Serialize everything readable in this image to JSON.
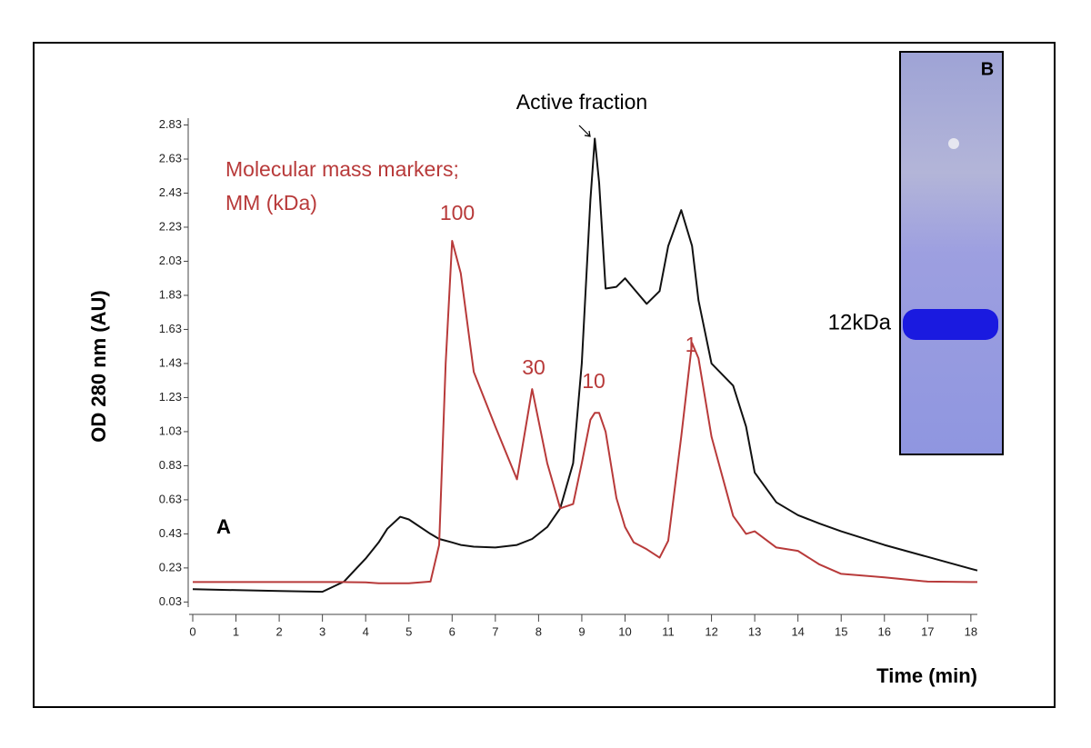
{
  "chart_data": {
    "type": "line",
    "y_label": "OD 280 nm (AU)",
    "x_label": "Time (min)",
    "annotations": [
      "Active fraction",
      "Molecular mass markers;",
      "MM (kDa)",
      "100",
      "30",
      "10",
      "1",
      "A"
    ],
    "inset": {
      "label": "B",
      "band_label": "12kDa"
    },
    "x": [
      0,
      1,
      2,
      3,
      3.5,
      4,
      4.3,
      4.5,
      4.8,
      5,
      5.5,
      5.7,
      5.85,
      6,
      6.2,
      6.5,
      7,
      7.5,
      7.85,
      8.2,
      8.5,
      8.8,
      9,
      9.2,
      9.3,
      9.4,
      9.55,
      9.8,
      10,
      10.2,
      10.5,
      10.8,
      11,
      11.3,
      11.55,
      11.7,
      12,
      12.5,
      12.8,
      13,
      13.5,
      14,
      14.5,
      15,
      16,
      17,
      18,
      18.15
    ],
    "series": [
      {
        "color": "#111111",
        "values": [
          0.105,
          0.1,
          0.095,
          0.09,
          0.15,
          0.285,
          0.38,
          0.46,
          0.53,
          0.515,
          0.43,
          0.4,
          0.39,
          0.38,
          0.365,
          0.355,
          0.35,
          0.365,
          0.4,
          0.47,
          0.58,
          0.845,
          1.43,
          2.39,
          2.75,
          2.49,
          1.87,
          1.88,
          1.93,
          1.87,
          1.78,
          1.855,
          2.12,
          2.33,
          2.12,
          1.8,
          1.43,
          1.3,
          1.06,
          0.79,
          0.615,
          0.54,
          0.49,
          0.445,
          0.365,
          0.295,
          0.225,
          0.215
        ]
      },
      {
        "color": "#b83a3a",
        "values": [
          0.147,
          0.147,
          0.147,
          0.147,
          0.147,
          0.145,
          0.14,
          0.14,
          0.14,
          0.14,
          0.15,
          0.365,
          1.43,
          2.15,
          1.96,
          1.38,
          1.06,
          0.75,
          1.28,
          0.845,
          0.58,
          0.605,
          0.845,
          1.1,
          1.14,
          1.14,
          1.03,
          0.64,
          0.47,
          0.38,
          0.34,
          0.29,
          0.39,
          1.0,
          1.55,
          1.46,
          1.0,
          0.535,
          0.43,
          0.445,
          0.35,
          0.33,
          0.25,
          0.195,
          0.175,
          0.15,
          0.147,
          0.147
        ]
      }
    ],
    "xlim": [
      0,
      18.15
    ],
    "xticks": [
      0,
      1,
      2,
      3,
      4,
      5,
      6,
      7,
      8,
      9,
      10,
      11,
      12,
      13,
      14,
      15,
      16,
      17,
      18
    ],
    "ylim": [
      0,
      2.87
    ],
    "yticks": [
      0.03,
      0.23,
      0.43,
      0.63,
      0.83,
      1.03,
      1.23,
      1.43,
      1.63,
      1.83,
      2.03,
      2.23,
      2.43,
      2.63,
      2.83
    ],
    "annotation_color": "#b83a3a"
  }
}
